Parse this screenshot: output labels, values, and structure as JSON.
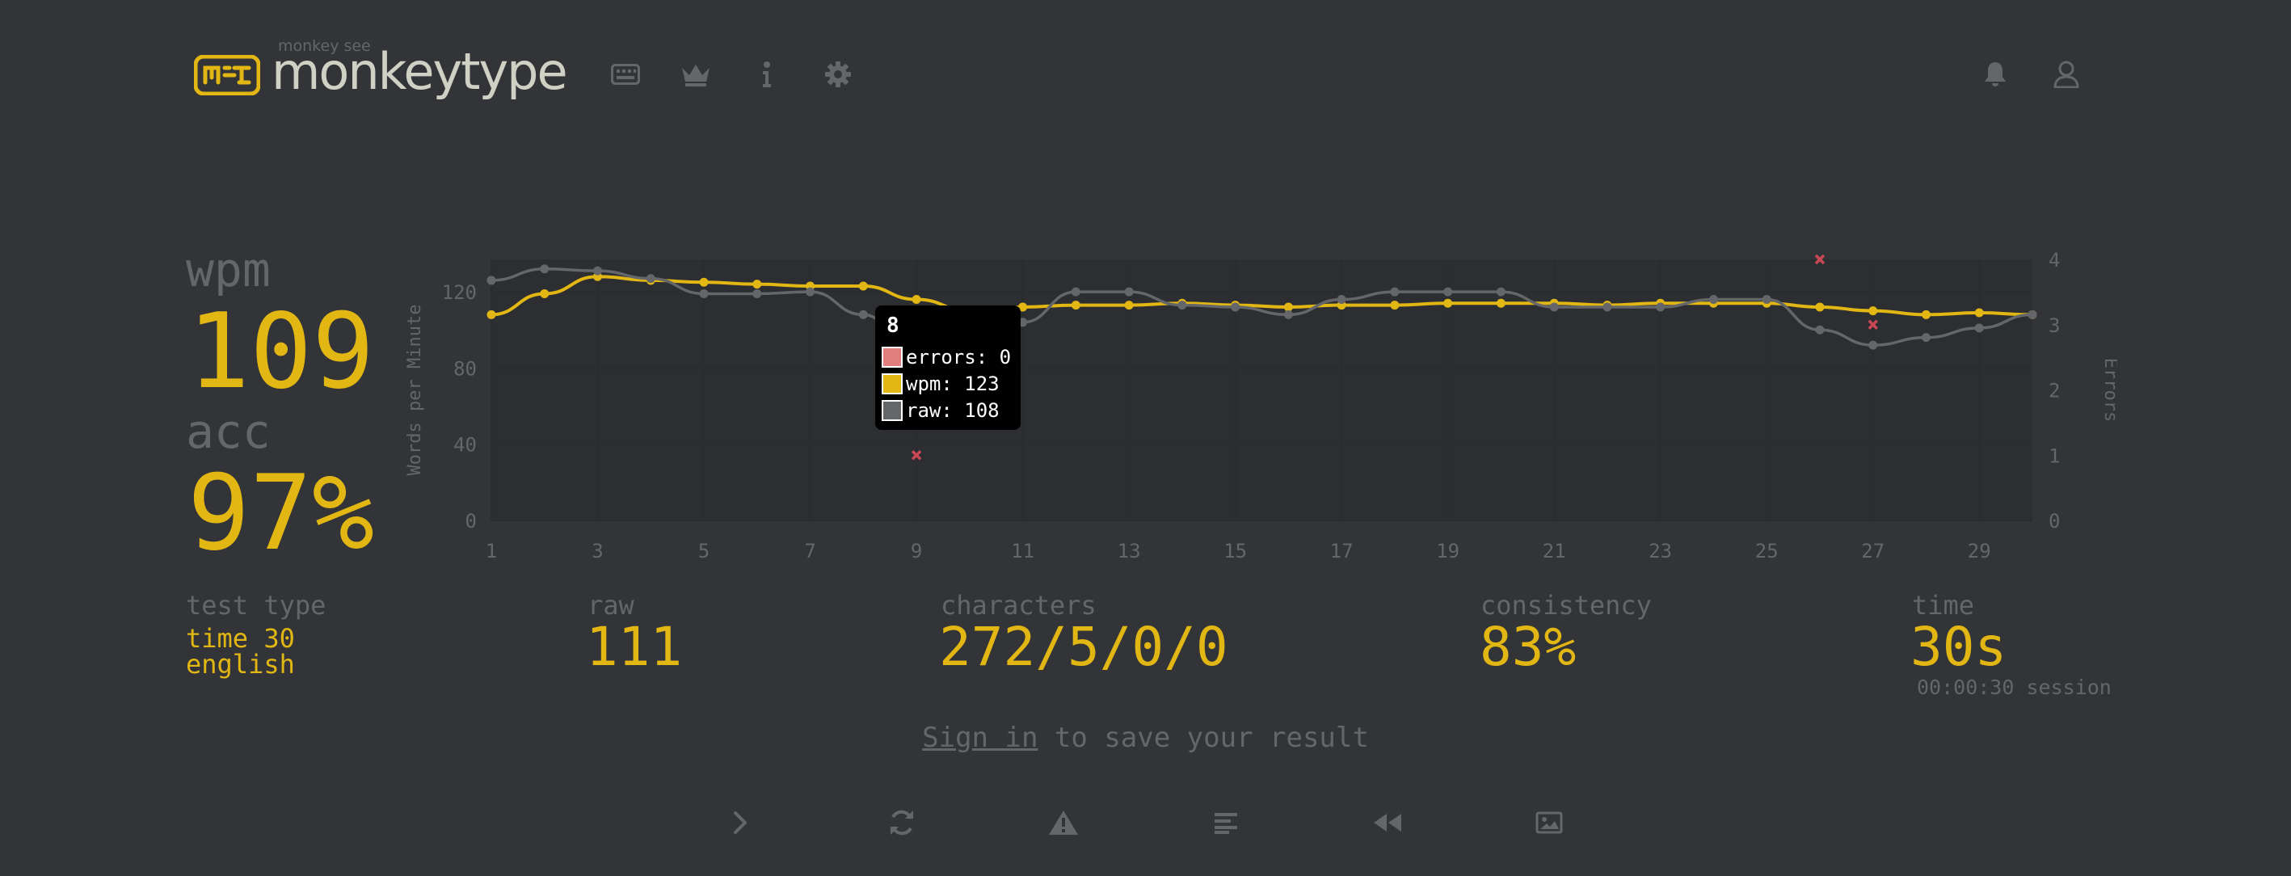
{
  "header": {
    "logo_top": "monkey see",
    "logo_text": "monkeytype"
  },
  "result": {
    "wpm_label": "wpm",
    "wpm_value": "109",
    "acc_label": "acc",
    "acc_value": "97%"
  },
  "stats": {
    "test_type_label": "test type",
    "test_type_mode": "time 30",
    "test_type_lang": "english",
    "raw_label": "raw",
    "raw_value": "111",
    "characters_label": "characters",
    "characters_value": "272/5/0/0",
    "consistency_label": "consistency",
    "consistency_value": "83%",
    "time_label": "time",
    "time_value": "30s",
    "session_value": "00:00:30 session"
  },
  "signin": {
    "link": "Sign in",
    "rest": " to save your result"
  },
  "tooltip": {
    "title": "8",
    "errors": "errors: 0",
    "wpm": "wpm: 123",
    "raw": "raw: 108"
  },
  "colors": {
    "bg": "#323437",
    "main": "#e2b714",
    "sub": "#646669",
    "text": "#d1d0c5",
    "error": "#ca4754"
  },
  "chart_data": {
    "type": "line",
    "ylabel": "Words per Minute",
    "y2label": "Errors",
    "ylim": [
      0,
      137
    ],
    "y2lim": [
      0,
      4
    ],
    "yticks": [
      0,
      40,
      80,
      120
    ],
    "y2ticks": [
      0,
      1,
      2,
      3,
      4
    ],
    "xticks": [
      1,
      3,
      5,
      7,
      9,
      11,
      13,
      15,
      17,
      19,
      21,
      23,
      25,
      27,
      29
    ],
    "x": [
      1,
      2,
      3,
      4,
      5,
      6,
      7,
      8,
      9,
      10,
      11,
      12,
      13,
      14,
      15,
      16,
      17,
      18,
      19,
      20,
      21,
      22,
      23,
      24,
      25,
      26,
      27,
      28,
      29,
      30
    ],
    "series": [
      {
        "name": "wpm",
        "color": "#e2b714",
        "values": [
          108,
          119,
          128,
          126,
          125,
          124,
          123,
          123,
          116,
          110,
          112,
          113,
          113,
          114,
          113,
          112,
          113,
          113,
          114,
          114,
          114,
          113,
          114,
          114,
          114,
          112,
          110,
          108,
          109,
          108
        ]
      },
      {
        "name": "raw",
        "color": "#646669",
        "values": [
          126,
          132,
          131,
          127,
          119,
          119,
          120,
          108,
          86,
          93,
          104,
          120,
          120,
          113,
          112,
          108,
          116,
          120,
          120,
          120,
          112,
          112,
          112,
          116,
          116,
          100,
          92,
          96,
          101,
          108
        ]
      },
      {
        "name": "errors",
        "color": "#ca4754",
        "points": [
          {
            "x": 9,
            "y": 1
          },
          {
            "x": 26,
            "y": 4
          },
          {
            "x": 27,
            "y": 3
          }
        ]
      }
    ]
  }
}
